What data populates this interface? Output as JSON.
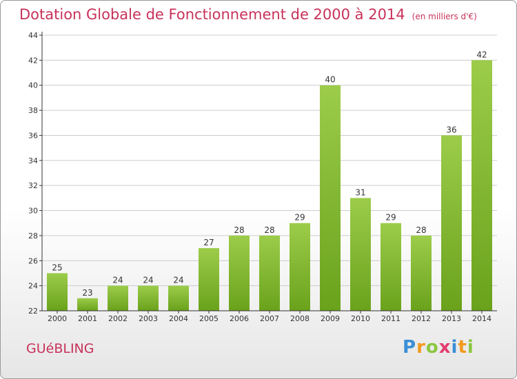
{
  "header": {
    "title": "Dotation Globale de Fonctionnement de 2000 à 2014",
    "subtitle": "(en milliers d'€)"
  },
  "footer": {
    "commune": "GUéBLING",
    "logo": {
      "p": "P",
      "r": "r",
      "o": "o",
      "x": "x",
      "i1": "i",
      "t": "t",
      "i2": "i"
    }
  },
  "colors": {
    "title": "#c8325a",
    "bar_light": "#9ccc4a",
    "bar_dark": "#6aa21c",
    "axis": "#333333",
    "grid": "#cccccc"
  },
  "chart_data": {
    "type": "bar",
    "title": "Dotation Globale de Fonctionnement de 2000 à 2014",
    "subtitle": "(en milliers d'€)",
    "xlabel": "",
    "ylabel": "",
    "categories": [
      "2000",
      "2001",
      "2002",
      "2003",
      "2004",
      "2005",
      "2006",
      "2007",
      "2008",
      "2009",
      "2010",
      "2011",
      "2012",
      "2013",
      "2014"
    ],
    "values": [
      25,
      23,
      24,
      24,
      24,
      27,
      28,
      28,
      29,
      40,
      31,
      29,
      28,
      36,
      42
    ],
    "ylim": [
      22,
      44
    ],
    "yticks": [
      22,
      24,
      26,
      28,
      30,
      32,
      34,
      36,
      38,
      40,
      42,
      44
    ],
    "grid": true,
    "legend": "none"
  }
}
